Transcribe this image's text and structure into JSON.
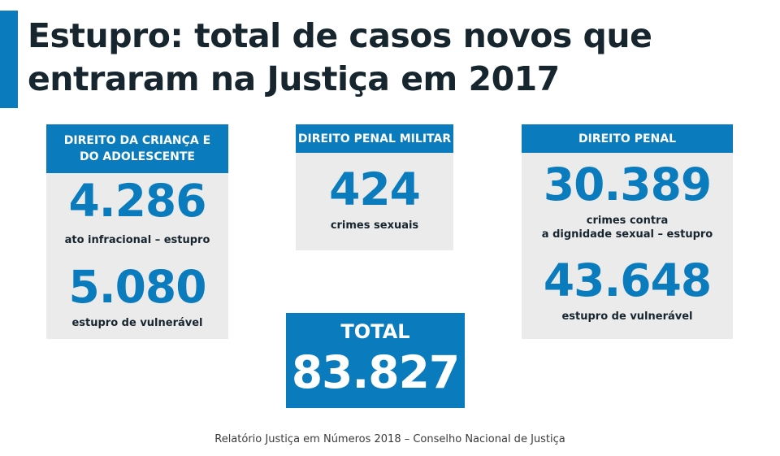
{
  "title": {
    "line1": "Estupro: total de casos novos que",
    "line2": "entraram na Justiça em 2017"
  },
  "cards": {
    "crianca": {
      "header_line1": "DIREITO DA CRIANÇA E",
      "header_line2": "DO ADOLESCENTE",
      "stats": [
        {
          "value": "4.286",
          "label": "ato infracional – estupro"
        },
        {
          "value": "5.080",
          "label": "estupro de vulnerável"
        }
      ]
    },
    "militar": {
      "header": "DIREITO PENAL MILITAR",
      "stats": [
        {
          "value": "424",
          "label": "crimes sexuais"
        }
      ]
    },
    "penal": {
      "header": "DIREITO PENAL",
      "stats": [
        {
          "value": "30.389",
          "label_line1": "crimes contra",
          "label_line2": "a dignidade sexual – estupro"
        },
        {
          "value": "43.648",
          "label": "estupro de vulnerável"
        }
      ]
    }
  },
  "total": {
    "label": "TOTAL",
    "value": "83.827"
  },
  "source": "Relatório Justiça em Números 2018 – Conselho Nacional de Justiça",
  "colors": {
    "accent": "#0a7bbd",
    "card_background": "#ebebeb",
    "title_text": "#17252f"
  }
}
